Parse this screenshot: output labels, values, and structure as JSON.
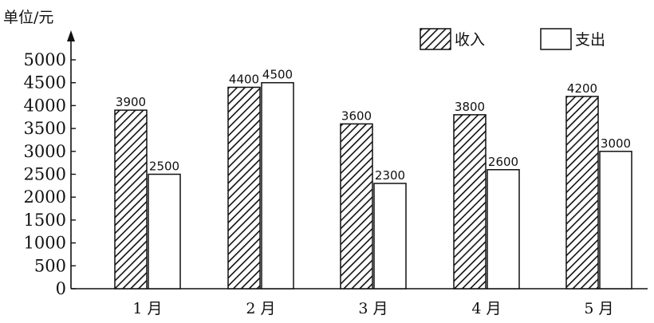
{
  "chart_data": {
    "type": "bar",
    "ylabel": "单位/元",
    "categories": [
      "1 月",
      "2 月",
      "3 月",
      "4 月",
      "5 月"
    ],
    "series": [
      {
        "name": "收入",
        "values": [
          3900,
          4400,
          3600,
          3800,
          4200
        ],
        "fill": "hatched"
      },
      {
        "name": "支出",
        "values": [
          2500,
          4500,
          2300,
          2600,
          3000
        ],
        "fill": "white"
      }
    ],
    "ylim": [
      0,
      5000
    ],
    "yticks": [
      0,
      500,
      1000,
      1500,
      2000,
      2500,
      3000,
      3500,
      4000,
      4500,
      5000
    ],
    "legend_position": "top-right",
    "grid": false,
    "data_labels": true
  }
}
